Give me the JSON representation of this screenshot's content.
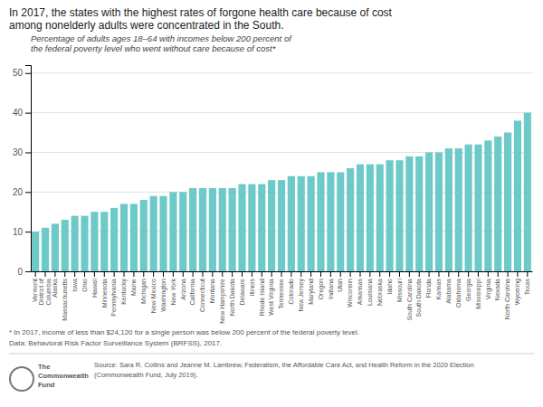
{
  "chart_data": {
    "type": "bar",
    "title": "In 2017, the states with the highest rates of forgone health care because of cost\namong nonelderly adults were concentrated in the South.",
    "subtitle": "Percentage of adults ages 18–64 with incomes below 200 percent of\nthe federal poverty level who went without care because of cost*",
    "annotations": [
      "* In 2017, income of less than $24,120 for a single person was below 200 percent of the federal poverty level.",
      "Data: Behavioral Risk Factor Surveillance System (BRFSS), 2017.",
      "Source: Sara R. Collins and Jeanne M. Lambrew, Federalism, the Affordable Care Act, and Health Reform in the 2020 Election\n(Commonwealth Fund, July 2019).",
      "The\nCommonwealth\nFund"
    ],
    "categories": [
      "Vermont",
      "District of\nColumbia",
      "Alaska",
      "Massachusetts",
      "Iowa",
      "Ohio",
      "Hawaii",
      "Minnesota",
      "Pennsylvania",
      "Kentucky",
      "Maine",
      "Michigan",
      "New Mexico",
      "Washington",
      "New York",
      "Arizona",
      "California",
      "Connecticut",
      "Montana",
      "New Hampshire",
      "North Dakota",
      "Delaware",
      "Illinois",
      "Rhode Island",
      "West Virginia",
      "Tennessee",
      "Colorado",
      "New Jersey",
      "Maryland",
      "Oregon",
      "Indiana",
      "Utah",
      "Wisconsin",
      "Arkansas",
      "Louisiana",
      "Nebraska",
      "Idaho",
      "Missouri",
      "South Carolina",
      "South Dakota",
      "Florida",
      "Kansas",
      "Alabama",
      "Oklahoma",
      "Georgia",
      "Mississippi",
      "Virginia",
      "Nevada",
      "North Carolina",
      "Wyoming",
      "Texas"
    ],
    "values": [
      10,
      11,
      12,
      13,
      14,
      14,
      15,
      15,
      16,
      17,
      17,
      18,
      19,
      19,
      20,
      20,
      21,
      21,
      21,
      21,
      21,
      22,
      22,
      22,
      23,
      23,
      24,
      24,
      24,
      25,
      25,
      25,
      26,
      27,
      27,
      27,
      28,
      28,
      29,
      29,
      30,
      30,
      31,
      31,
      32,
      32,
      33,
      34,
      35,
      38,
      40
    ],
    "color": "#6ECAC8",
    "ylim": [
      0,
      52
    ],
    "yticks": [
      0,
      10,
      20,
      30,
      40,
      50
    ],
    "grid": true
  }
}
